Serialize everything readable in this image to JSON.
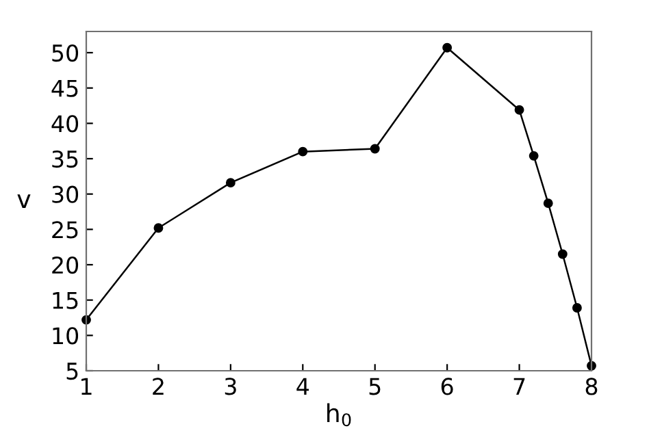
{
  "chart_data": {
    "type": "line",
    "xlabel": "h$_{0}$",
    "ylabel": "v",
    "x": [
      1,
      2,
      3,
      4,
      5,
      6,
      7,
      7.2,
      7.4,
      7.6,
      7.8,
      8
    ],
    "series": [
      {
        "color": "#000000",
        "values": [
          12.2,
          25.2,
          31.6,
          36,
          36.4,
          50.7,
          41.9,
          35.4,
          28.7,
          21.5,
          13.9,
          5.7
        ]
      }
    ],
    "xlim": [
      1,
      8
    ],
    "ylim": [
      5,
      53
    ],
    "xticks": [
      1,
      2,
      3,
      4,
      5,
      6,
      7,
      8
    ],
    "yticks": [
      5,
      10,
      15,
      20,
      25,
      30,
      35,
      40,
      45,
      50
    ],
    "grid": false,
    "legend": false,
    "marker": "circle",
    "line_style": "solid"
  }
}
